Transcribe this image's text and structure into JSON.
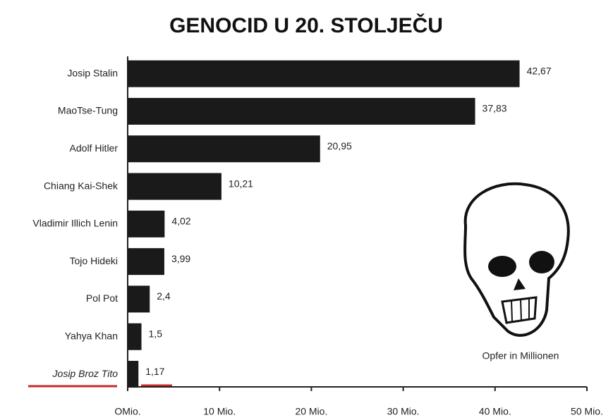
{
  "chart_data": {
    "type": "barh",
    "title": "GENOCID U 20. STOLJEČU",
    "categories": [
      "Josip Stalin",
      "MaoTse-Tung",
      "Adolf Hitler",
      "Chiang Kai-Shek",
      "Vladimir Illich Lenin",
      "Tojo Hideki",
      "Pol Pot",
      "Yahya Khan",
      "Josip Broz Tito"
    ],
    "values": [
      42.67,
      37.83,
      20.95,
      10.21,
      4.02,
      3.99,
      2.4,
      1.5,
      1.17
    ],
    "value_labels": [
      "42,67",
      "37,83",
      "20,95",
      "10,21",
      "4,02",
      "3,99",
      "2,4",
      "1,5",
      "1,17"
    ],
    "color": "#1a1a1a",
    "xlim": [
      0,
      50
    ],
    "xticks": [
      {
        "value": 0,
        "label": "OMio."
      },
      {
        "value": 10,
        "label": "10 Mio."
      },
      {
        "value": 20,
        "label": "20 Mio."
      },
      {
        "value": 30,
        "label": "30 Mio."
      },
      {
        "value": 40,
        "label": "40 Mio."
      },
      {
        "value": 50,
        "label": "50 Mio."
      }
    ],
    "annotation": "Opfer in Millionen"
  }
}
